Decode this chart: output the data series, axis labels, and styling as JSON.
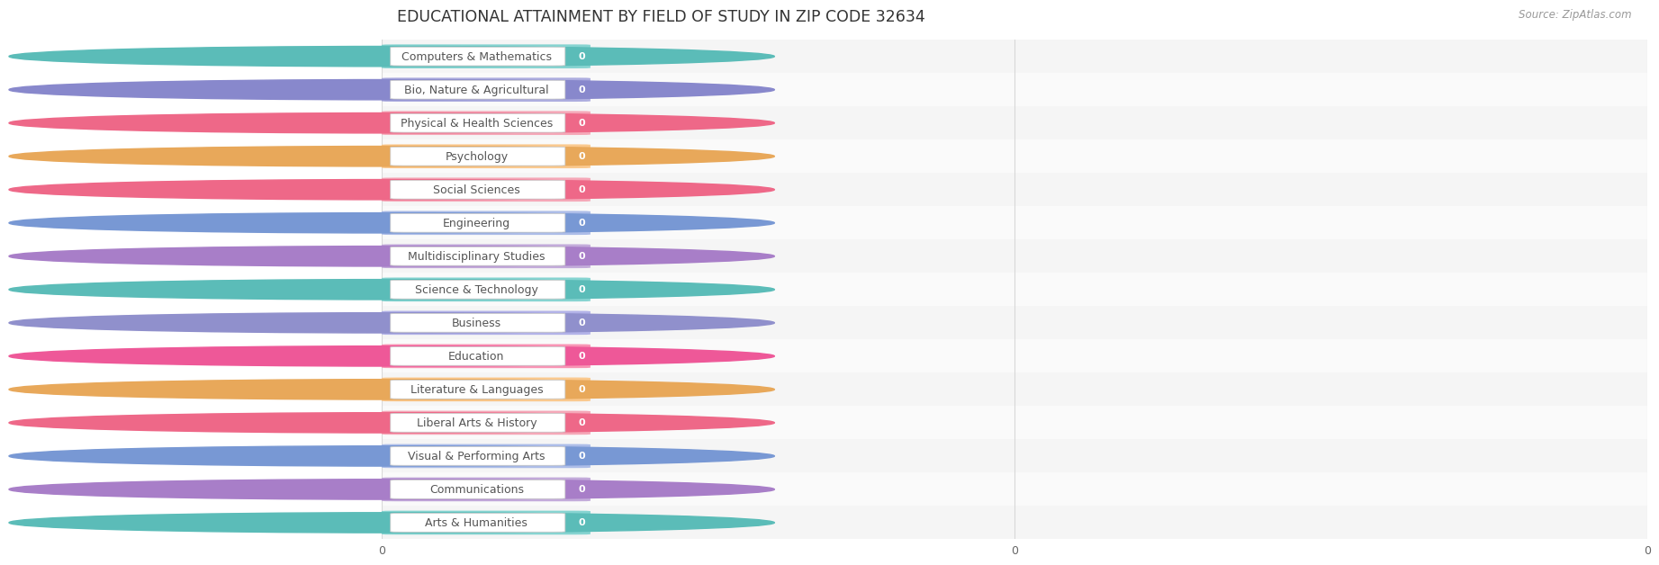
{
  "title": "EDUCATIONAL ATTAINMENT BY FIELD OF STUDY IN ZIP CODE 32634",
  "source": "Source: ZipAtlas.com",
  "categories": [
    "Computers & Mathematics",
    "Bio, Nature & Agricultural",
    "Physical & Health Sciences",
    "Psychology",
    "Social Sciences",
    "Engineering",
    "Multidisciplinary Studies",
    "Science & Technology",
    "Business",
    "Education",
    "Literature & Languages",
    "Liberal Arts & History",
    "Visual & Performing Arts",
    "Communications",
    "Arts & Humanities"
  ],
  "values": [
    0,
    0,
    0,
    0,
    0,
    0,
    0,
    0,
    0,
    0,
    0,
    0,
    0,
    0,
    0
  ],
  "bar_colors": [
    "#87D4D1",
    "#ADADDF",
    "#F5A8B8",
    "#FAC98F",
    "#F5A8B8",
    "#ADBDE8",
    "#C3ABDA",
    "#87D4D1",
    "#B3B3E8",
    "#F895B5",
    "#FAC98F",
    "#F5A8B8",
    "#ADBDE8",
    "#C3ABDA",
    "#87D4D1"
  ],
  "icon_colors": [
    "#5BBCB8",
    "#8888CC",
    "#EE6888",
    "#E8A85A",
    "#EE6888",
    "#7898D4",
    "#A87EC8",
    "#5BBCB8",
    "#9090CC",
    "#EE5898",
    "#E8A85A",
    "#EE6888",
    "#7898D4",
    "#A87EC8",
    "#5BBCB8"
  ],
  "row_colors": [
    "#f5f5f5",
    "#fafafa"
  ],
  "grid_color": "#d8d8d8",
  "title_fontsize": 12.5,
  "label_fontsize": 9.0,
  "value_fontsize": 8.0,
  "source_fontsize": 8.5,
  "xtick_positions": [
    0.0,
    0.5,
    1.0
  ],
  "xtick_labels": [
    "0",
    "0",
    "0"
  ]
}
